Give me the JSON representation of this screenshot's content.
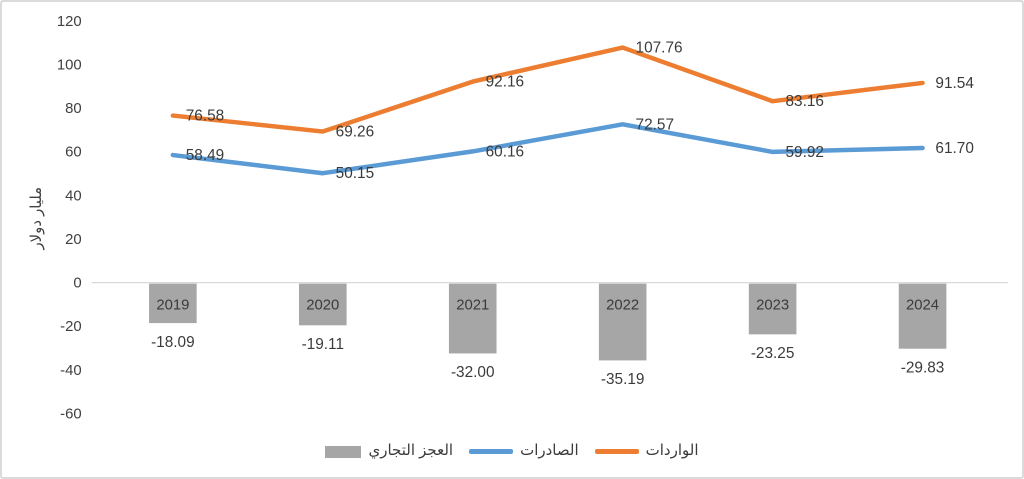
{
  "chart_data": {
    "type": "combo",
    "title": "",
    "categories": [
      "2019",
      "2020",
      "2021",
      "2022",
      "2023",
      "2024"
    ],
    "series": [
      {
        "name": "الواردات",
        "key": "imports",
        "type": "line",
        "color": "#ED7D31",
        "values": [
          76.58,
          69.26,
          92.16,
          107.76,
          83.16,
          91.54
        ]
      },
      {
        "name": "الصادرات",
        "key": "exports",
        "type": "line",
        "color": "#5B9BD5",
        "values": [
          58.49,
          50.15,
          60.16,
          72.57,
          59.92,
          61.7
        ]
      },
      {
        "name": "العجز التجاري",
        "key": "trade-deficit",
        "type": "bar",
        "color": "#A6A6A6",
        "values": [
          -18.09,
          -19.11,
          -32.0,
          -35.19,
          -23.25,
          -29.83
        ]
      }
    ],
    "xlabel": "",
    "ylabel": "مليار دولار",
    "ylim": [
      -60,
      120
    ],
    "ytick_step": 20,
    "yticks": [
      "120",
      "100",
      "80",
      "60",
      "40",
      "20",
      "0",
      "-20",
      "-40",
      "-60"
    ],
    "grid": false,
    "legend_position": "bottom"
  },
  "legend": {
    "items": [
      {
        "label": "العجز التجاري",
        "color": "#A6A6A6",
        "marker": "bar"
      },
      {
        "label": "الصادرات",
        "color": "#5B9BD5",
        "marker": "line"
      },
      {
        "label": "الواردات",
        "color": "#ED7D31",
        "marker": "line"
      }
    ]
  },
  "colors": {
    "axis_line": "#D9D9D9",
    "text": "#404040",
    "frame_border": "#DBDBDB"
  }
}
